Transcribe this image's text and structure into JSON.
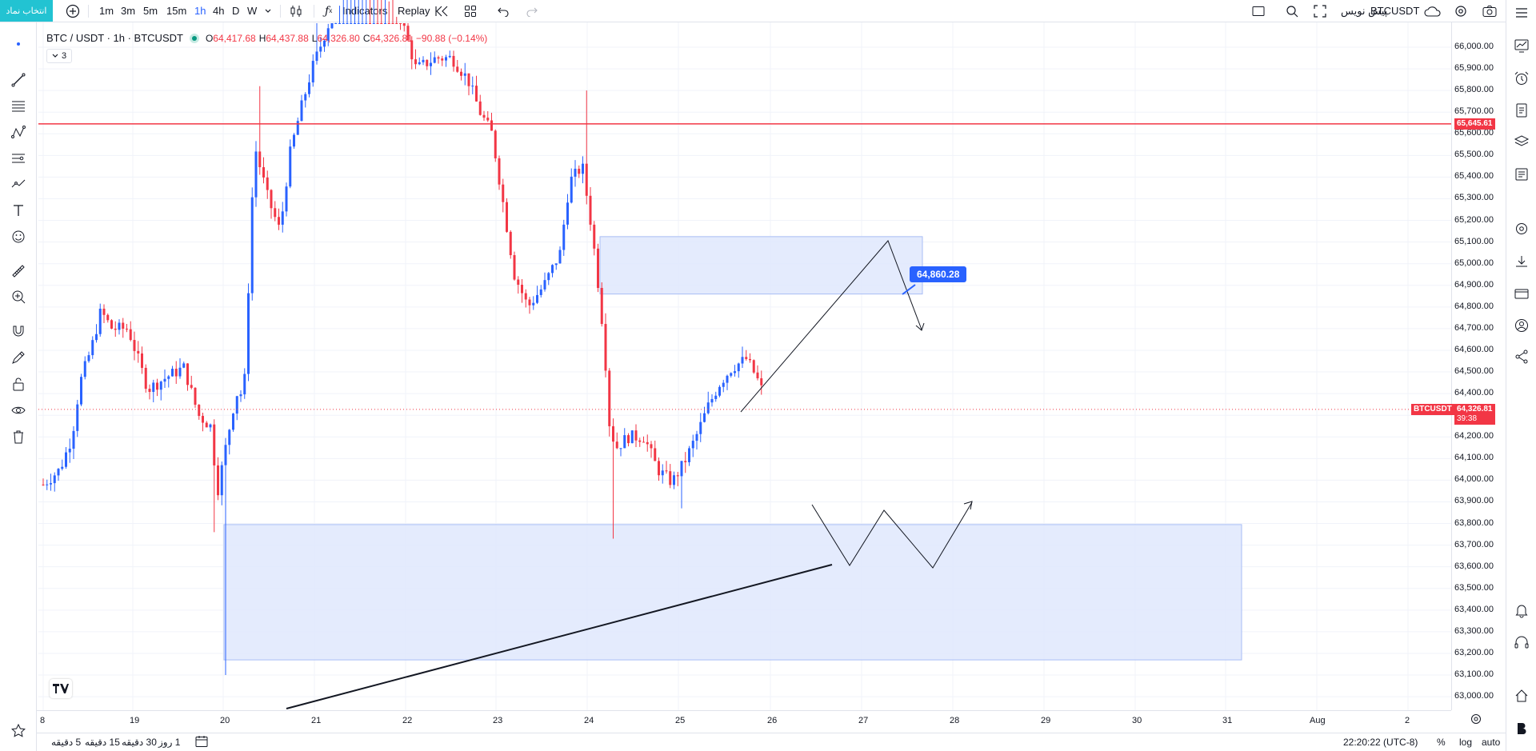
{
  "topbar": {
    "symbol_search_label": "انتخاب نماد",
    "intervals": [
      "1m",
      "3m",
      "5m",
      "15m",
      "1h",
      "4h",
      "D",
      "W"
    ],
    "active_interval": "1h",
    "indicators_label": "Indicators",
    "replay_label": "Replay",
    "publish_label": "پیش نویس",
    "symbol_label": "BTCUSDT"
  },
  "legend": {
    "title": "BTC / USDT · 1h · BTCUSDT",
    "open_prefix": "O",
    "open": "64,417.68",
    "high_prefix": "H",
    "high": "64,437.88",
    "low_prefix": "L",
    "low": "64,326.80",
    "close_prefix": "C",
    "close": "64,326.81",
    "change": "−90.88 (−0.14%)",
    "indicators_count": "3",
    "status_color": "#089981"
  },
  "price_axis": {
    "labels": [
      "66,000.00",
      "65,900.00",
      "65,800.00",
      "65,700.00",
      "65,600.00",
      "65,500.00",
      "65,400.00",
      "65,300.00",
      "65,200.00",
      "65,100.00",
      "65,000.00",
      "64,900.00",
      "64,800.00",
      "64,700.00",
      "64,600.00",
      "64,500.00",
      "64,400.00",
      "64,300.00",
      "64,200.00",
      "64,100.00",
      "64,000.00",
      "63,900.00",
      "63,800.00",
      "63,700.00",
      "63,600.00",
      "63,500.00",
      "63,400.00",
      "63,300.00",
      "63,200.00",
      "63,100.00",
      "63,000.00"
    ],
    "horizontal_line_price": "65,645.61",
    "last_price": "64,326.81",
    "countdown": "39:38",
    "symbol_tag": "BTCUSDT"
  },
  "time_axis": {
    "labels": [
      "8",
      "19",
      "20",
      "21",
      "22",
      "23",
      "24",
      "25",
      "26",
      "27",
      "28",
      "29",
      "30",
      "31",
      "Aug",
      "2"
    ]
  },
  "drawings": {
    "callout_price": "64,860.28"
  },
  "bottombar": {
    "ranges": [
      "5 دقیقه",
      "15 دقیقه",
      "30 دقیقه",
      "1 روز"
    ],
    "clock": "22:20:22 (UTC-8)",
    "percent_label": "%",
    "log_label": "log",
    "auto_label": "auto"
  },
  "colors": {
    "up": "#2962ff",
    "down": "#f23645",
    "zone_fill": "#dfe8fd",
    "zone_border": "#a9bdf5",
    "accent": "#22c3d2"
  },
  "icons": {
    "left_toolbar": [
      "crosshair-icon",
      "trend-line-icon",
      "fib-icon",
      "pattern-icon",
      "projection-icon",
      "forecast-icon",
      "text-icon",
      "emoji-icon",
      "ruler-icon",
      "zoom-in-icon",
      "magnet-icon",
      "lock-draw-icon",
      "lock-icon",
      "eye-icon",
      "trash-icon",
      "star-icon"
    ],
    "right_toolbar": [
      "list-icon",
      "chart-icon",
      "alarm-icon",
      "notes-icon",
      "layers-icon",
      "news-icon",
      "settings-icon",
      "download-icon",
      "card-icon",
      "user-icon",
      "share-icon",
      "bell-icon",
      "headset-icon",
      "home-icon",
      "brand-b-icon"
    ]
  }
}
